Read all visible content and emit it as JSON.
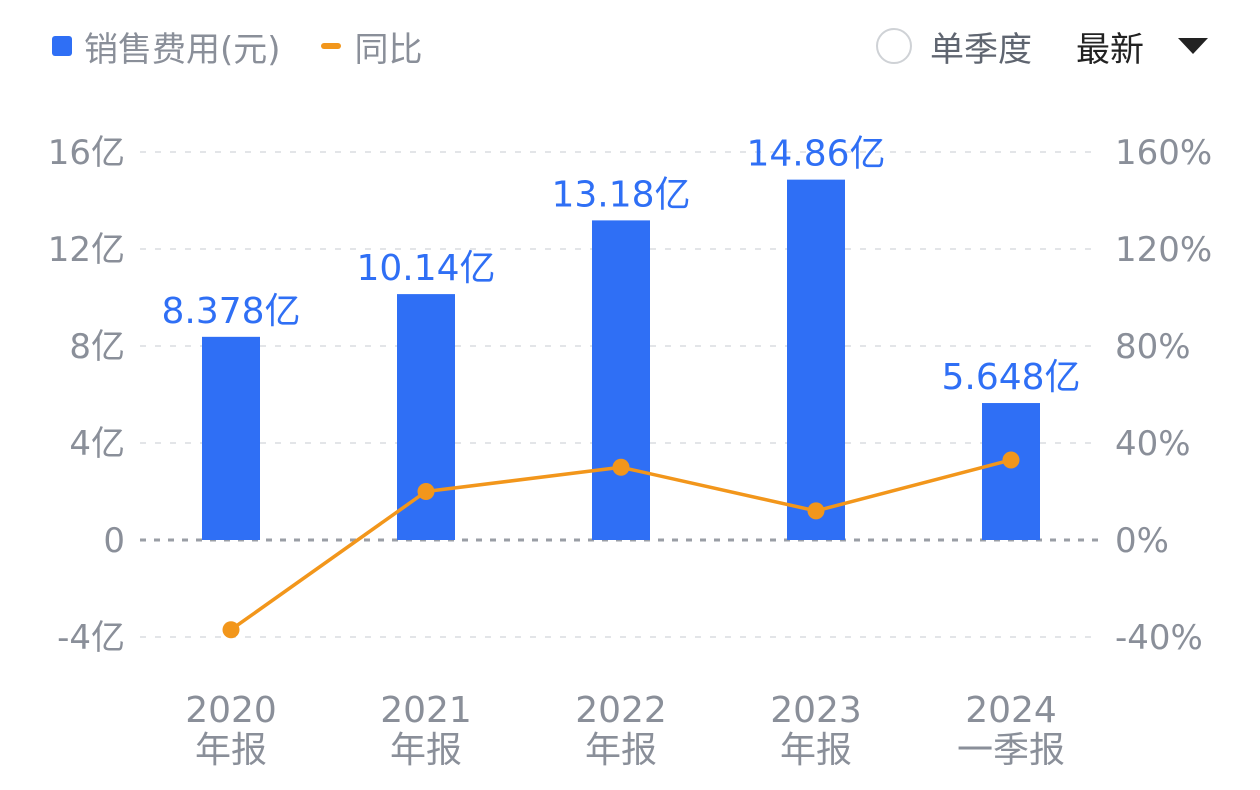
{
  "legend": {
    "bar_label": "销售费用(元)",
    "line_label": "同比"
  },
  "controls": {
    "quarter_toggle_label": "单季度",
    "period_select_value": "最新"
  },
  "colors": {
    "bar": "#2f6ff5",
    "line": "#f2961b",
    "axis_text": "#8a8f99",
    "value_label": "#2f6ff5",
    "grid": "#e3e5e8",
    "zero_line": "#9a9ea5"
  },
  "chart_data": {
    "type": "bar",
    "categories": [
      [
        "2020",
        "年报"
      ],
      [
        "2021",
        "年报"
      ],
      [
        "2022",
        "年报"
      ],
      [
        "2023",
        "年报"
      ],
      [
        "2024",
        "一季报"
      ]
    ],
    "series": [
      {
        "name": "销售费用(元)",
        "type": "bar",
        "axis": "left",
        "values": [
          8.378,
          10.14,
          13.18,
          14.86,
          5.648
        ],
        "labels": [
          "8.378亿",
          "10.14亿",
          "13.18亿",
          "14.86亿",
          "5.648亿"
        ]
      },
      {
        "name": "同比",
        "type": "line",
        "axis": "right",
        "values": [
          -37,
          20,
          30,
          12,
          33
        ]
      }
    ],
    "left_axis": {
      "ticks": [
        16,
        12,
        8,
        4,
        0,
        -4
      ],
      "tick_labels": [
        "16亿",
        "12亿",
        "8亿",
        "4亿",
        "0",
        "-4亿"
      ],
      "range": [
        -4,
        16
      ]
    },
    "right_axis": {
      "ticks": [
        160,
        120,
        80,
        40,
        0,
        -40
      ],
      "tick_labels": [
        "160%",
        "120%",
        "80%",
        "40%",
        "0%",
        "-40%"
      ],
      "range": [
        -40,
        160
      ]
    },
    "grid": true,
    "legend_position": "top-left"
  }
}
